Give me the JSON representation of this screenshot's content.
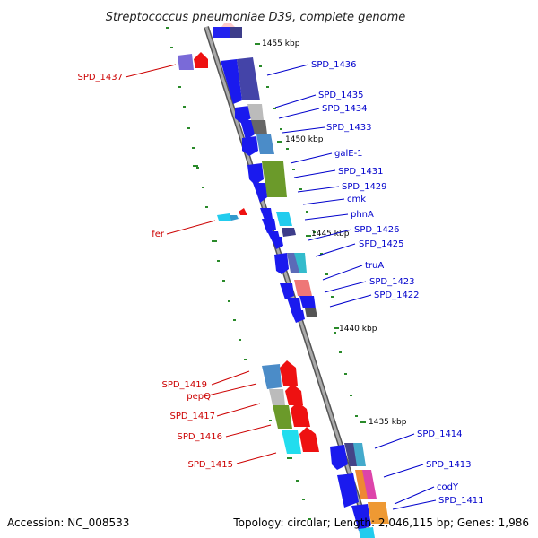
{
  "title": "Streptococcus pneumoniae D39, complete genome",
  "accession": "Accession: NC_008533",
  "topology": "Topology: circular; Length: 2,046,115 bp; Genes: 1,986",
  "colors": {
    "forward_label": "#0000cc",
    "reverse_label": "#cc0000",
    "backbone": "#888888",
    "dot": "#2a8a2a"
  },
  "ticks": [
    "1455 kbp",
    "1450 kbp",
    "1445 kbp",
    "1440 kbp",
    "1435 kbp"
  ],
  "forward_genes": [
    "SPD_1436",
    "SPD_1435",
    "SPD_1434",
    "SPD_1433",
    "galE-1",
    "SPD_1431",
    "SPD_1429",
    "cmk",
    "phnA",
    "SPD_1426",
    "SPD_1425",
    "truA",
    "SPD_1423",
    "SPD_1422",
    "SPD_1414",
    "SPD_1413",
    "codY",
    "SPD_1411"
  ],
  "reverse_genes": [
    "SPD_1437",
    "fer",
    "SPD_1419",
    "pepQ",
    "SPD_1417",
    "SPD_1416",
    "SPD_1415"
  ]
}
